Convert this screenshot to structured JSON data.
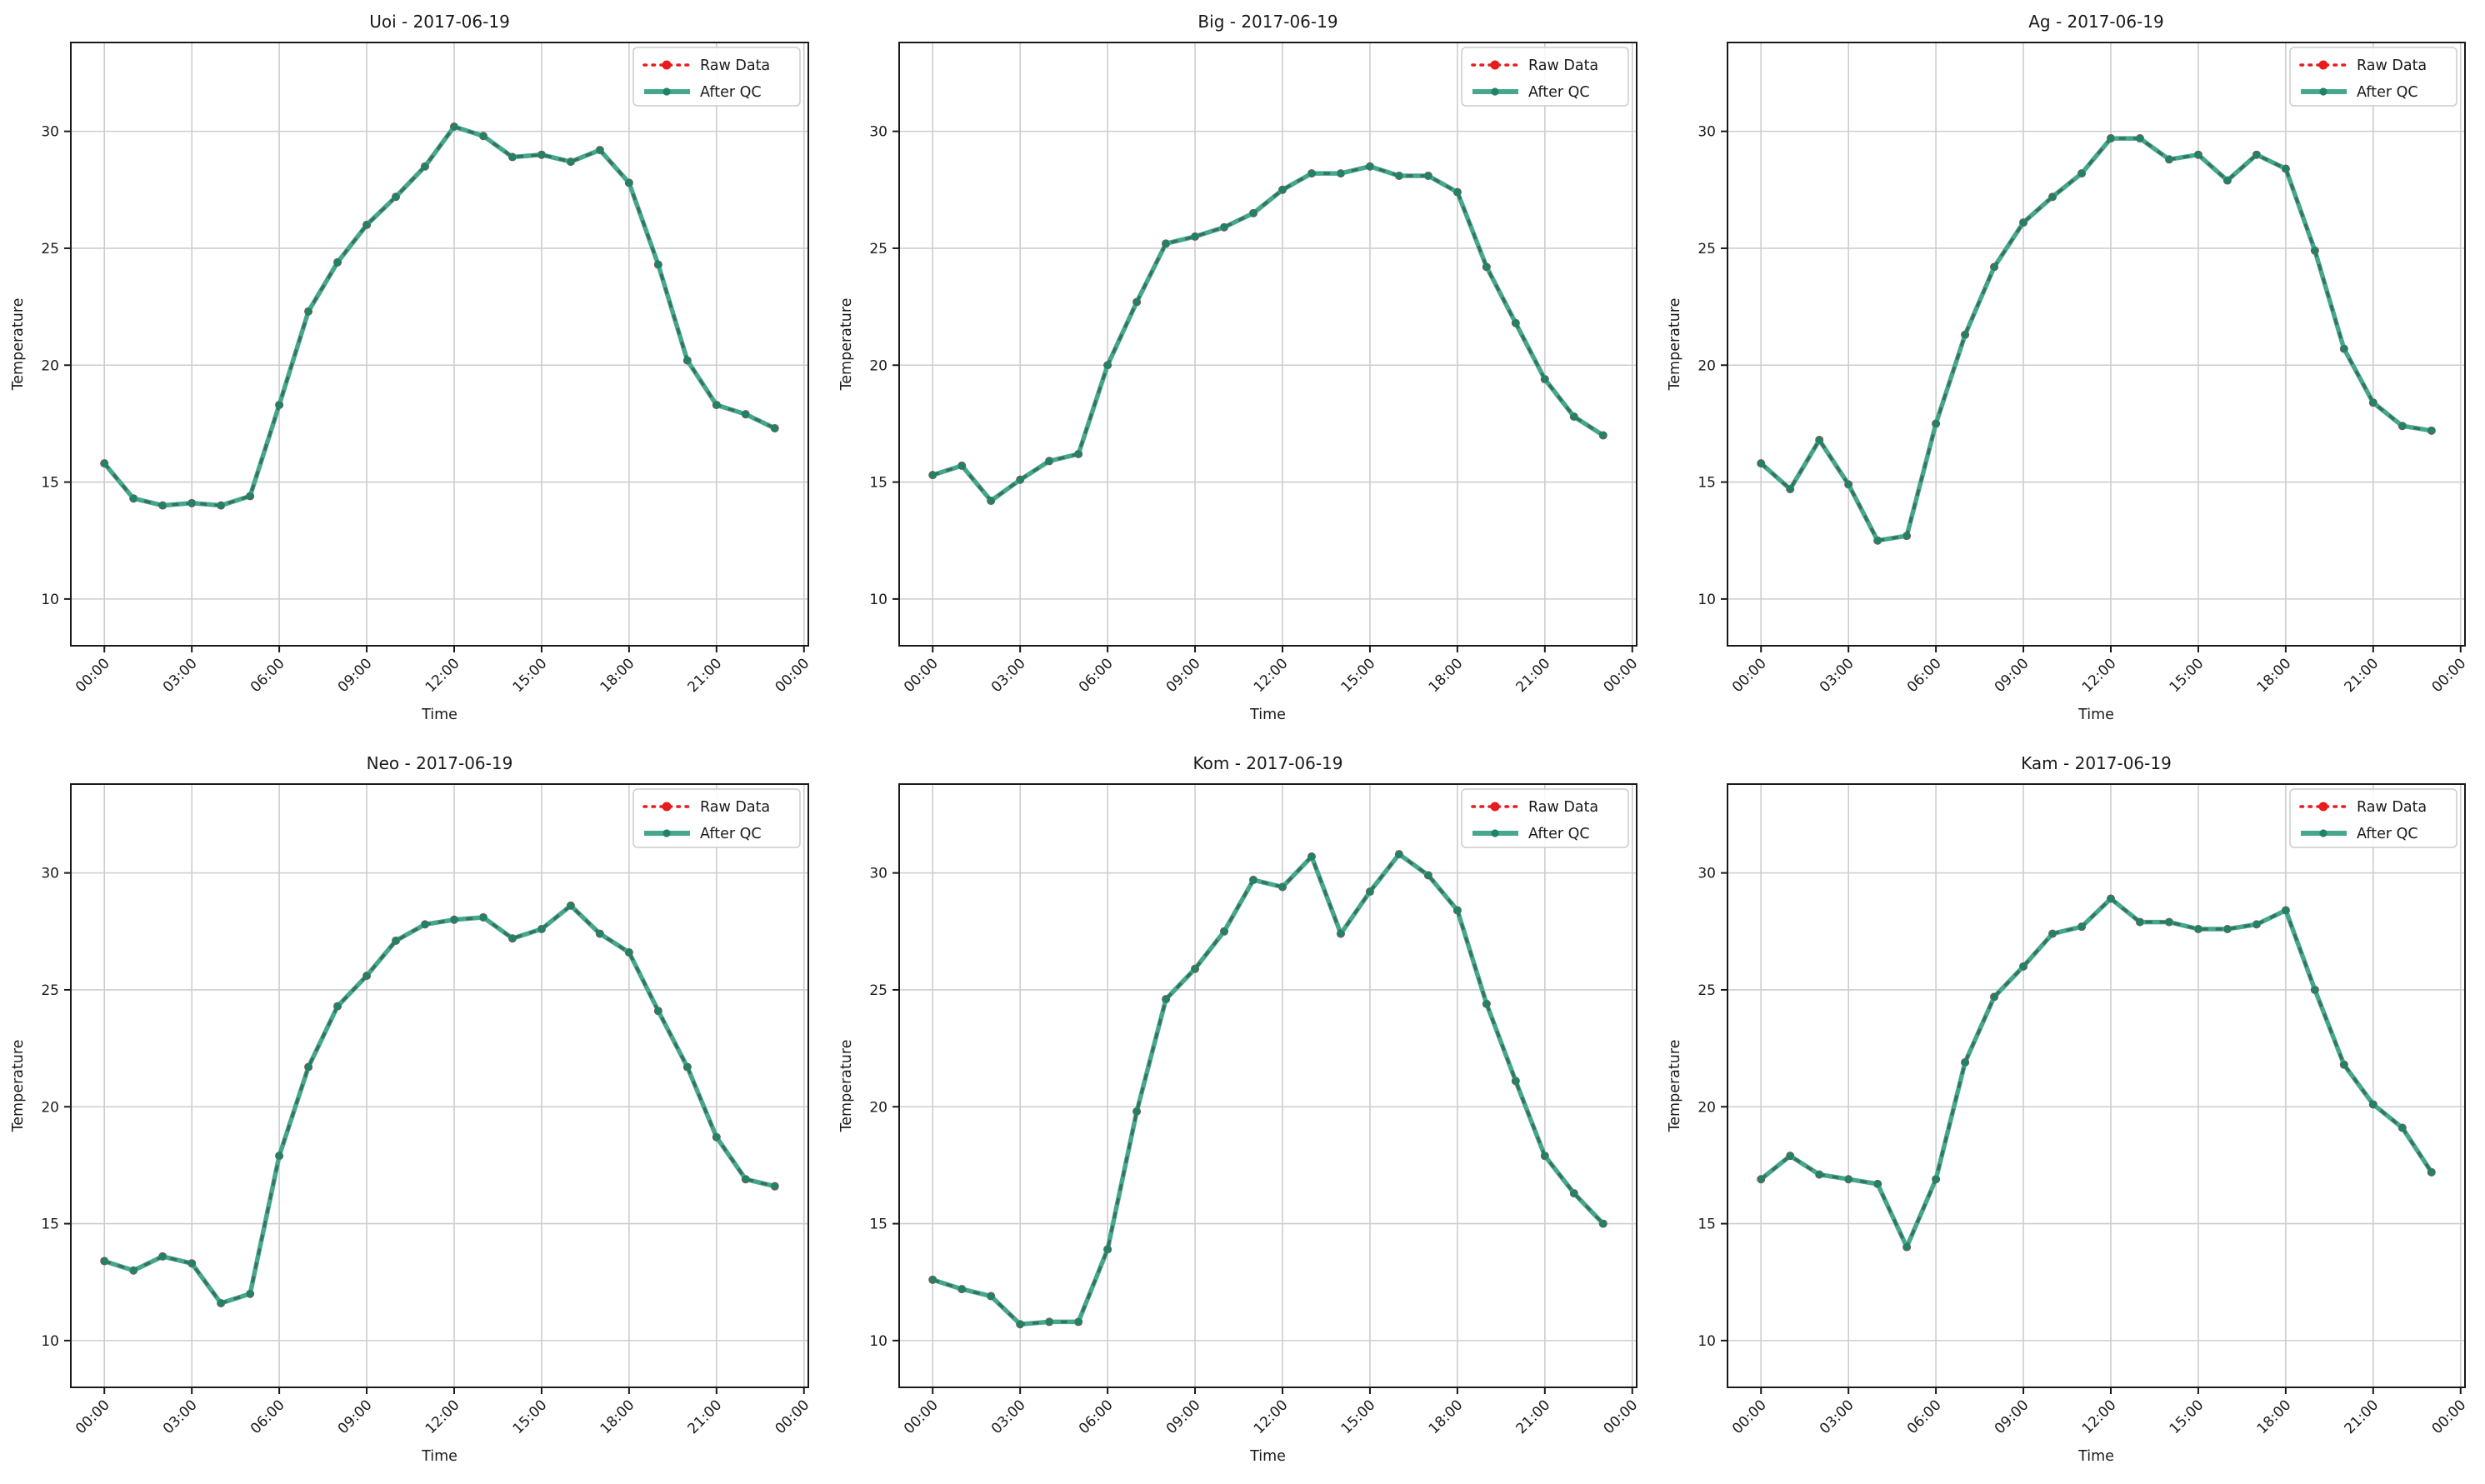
{
  "figure": {
    "date": "2017-06-19",
    "xlabel": "Time",
    "ylabel": "Temperature",
    "colors": {
      "raw_red": "#e81c1c",
      "qc_line_teal": "#45a78c",
      "qc_dash_overlay": "#38705f",
      "qc_marker": "#218268",
      "grid": "#cdcdcd",
      "spine": "#1a1a1a",
      "text": "#1a1a1a",
      "legend_border": "#cccccc",
      "legend_bg": "#ffffff"
    },
    "axes": {
      "xlim_hours": [
        -1.15,
        24.15
      ],
      "ylim": [
        8.0,
        33.8
      ],
      "xtick_hours": [
        0,
        3,
        6,
        9,
        12,
        15,
        18,
        21,
        24
      ],
      "xtick_labels": [
        "00:00",
        "03:00",
        "06:00",
        "09:00",
        "12:00",
        "15:00",
        "18:00",
        "21:00",
        "00:00"
      ],
      "ytick_values": [
        10,
        15,
        20,
        25,
        30
      ],
      "ytick_labels": [
        "10",
        "15",
        "20",
        "25",
        "30"
      ],
      "grid": true,
      "legend_position": "upper right"
    }
  },
  "chart_data": [
    {
      "type": "line",
      "station": "Uoi",
      "title": "Uoi - 2017-06-19",
      "xlabel": "Time",
      "ylabel": "Temperature",
      "x_hours": [
        0,
        1,
        2,
        3,
        4,
        5,
        6,
        7,
        8,
        9,
        10,
        11,
        12,
        13,
        14,
        15,
        16,
        17,
        18,
        19,
        20,
        21,
        22,
        23
      ],
      "series": [
        {
          "name": "Raw Data",
          "style": "dotted",
          "color_key": "raw_red",
          "values": [
            15.8,
            14.3,
            14.0,
            14.1,
            14.0,
            14.4,
            18.3,
            22.3,
            24.4,
            26.0,
            27.2,
            28.5,
            30.2,
            29.8,
            28.9,
            29.0,
            28.7,
            29.2,
            27.8,
            24.3,
            20.2,
            18.3,
            17.9,
            17.3
          ]
        },
        {
          "name": "After QC",
          "style": "solid",
          "color_key": "qc_line_teal",
          "values": [
            15.8,
            14.3,
            14.0,
            14.1,
            14.0,
            14.4,
            18.3,
            22.3,
            24.4,
            26.0,
            27.2,
            28.5,
            30.2,
            29.8,
            28.9,
            29.0,
            28.7,
            29.2,
            27.8,
            24.3,
            20.2,
            18.3,
            17.9,
            17.3
          ]
        }
      ]
    },
    {
      "type": "line",
      "station": "Big",
      "title": "Big - 2017-06-19",
      "xlabel": "Time",
      "ylabel": "Temperature",
      "x_hours": [
        0,
        1,
        2,
        3,
        4,
        5,
        6,
        7,
        8,
        9,
        10,
        11,
        12,
        13,
        14,
        15,
        16,
        17,
        18,
        19,
        20,
        21,
        22,
        23
      ],
      "series": [
        {
          "name": "Raw Data",
          "style": "dotted",
          "color_key": "raw_red",
          "values": [
            15.3,
            15.7,
            14.2,
            15.1,
            15.9,
            16.2,
            20.0,
            22.7,
            25.2,
            25.5,
            25.9,
            26.5,
            27.5,
            28.2,
            28.2,
            28.5,
            28.1,
            28.1,
            27.4,
            24.2,
            21.8,
            19.4,
            17.8,
            17.0
          ]
        },
        {
          "name": "After QC",
          "style": "solid",
          "color_key": "qc_line_teal",
          "values": [
            15.3,
            15.7,
            14.2,
            15.1,
            15.9,
            16.2,
            20.0,
            22.7,
            25.2,
            25.5,
            25.9,
            26.5,
            27.5,
            28.2,
            28.2,
            28.5,
            28.1,
            28.1,
            27.4,
            24.2,
            21.8,
            19.4,
            17.8,
            17.0
          ]
        }
      ]
    },
    {
      "type": "line",
      "station": "Ag",
      "title": "Ag - 2017-06-19",
      "xlabel": "Time",
      "ylabel": "Temperature",
      "x_hours": [
        0,
        1,
        2,
        3,
        4,
        5,
        6,
        7,
        8,
        9,
        10,
        11,
        12,
        13,
        14,
        15,
        16,
        17,
        18,
        19,
        20,
        21,
        22,
        23
      ],
      "series": [
        {
          "name": "Raw Data",
          "style": "dotted",
          "color_key": "raw_red",
          "values": [
            15.8,
            14.7,
            16.8,
            14.9,
            12.5,
            12.7,
            17.5,
            21.3,
            24.2,
            26.1,
            27.2,
            28.2,
            29.7,
            29.7,
            28.8,
            29.0,
            27.9,
            29.0,
            28.4,
            24.9,
            20.7,
            18.4,
            17.4,
            17.2
          ]
        },
        {
          "name": "After QC",
          "style": "solid",
          "color_key": "qc_line_teal",
          "values": [
            15.8,
            14.7,
            16.8,
            14.9,
            12.5,
            12.7,
            17.5,
            21.3,
            24.2,
            26.1,
            27.2,
            28.2,
            29.7,
            29.7,
            28.8,
            29.0,
            27.9,
            29.0,
            28.4,
            24.9,
            20.7,
            18.4,
            17.4,
            17.2
          ]
        }
      ]
    },
    {
      "type": "line",
      "station": "Neo",
      "title": "Neo - 2017-06-19",
      "xlabel": "Time",
      "ylabel": "Temperature",
      "x_hours": [
        0,
        1,
        2,
        3,
        4,
        5,
        6,
        7,
        8,
        9,
        10,
        11,
        12,
        13,
        14,
        15,
        16,
        17,
        18,
        19,
        20,
        21,
        22,
        23
      ],
      "series": [
        {
          "name": "Raw Data",
          "style": "dotted",
          "color_key": "raw_red",
          "values": [
            13.4,
            13.0,
            13.6,
            13.3,
            11.6,
            12.0,
            17.9,
            21.7,
            24.3,
            25.6,
            27.1,
            27.8,
            28.0,
            28.1,
            27.2,
            27.6,
            28.6,
            27.4,
            26.6,
            24.1,
            21.7,
            18.7,
            16.9,
            16.6
          ]
        },
        {
          "name": "After QC",
          "style": "solid",
          "color_key": "qc_line_teal",
          "values": [
            13.4,
            13.0,
            13.6,
            13.3,
            11.6,
            12.0,
            17.9,
            21.7,
            24.3,
            25.6,
            27.1,
            27.8,
            28.0,
            28.1,
            27.2,
            27.6,
            28.6,
            27.4,
            26.6,
            24.1,
            21.7,
            18.7,
            16.9,
            16.6
          ]
        }
      ]
    },
    {
      "type": "line",
      "station": "Kom",
      "title": "Kom - 2017-06-19",
      "xlabel": "Time",
      "ylabel": "Temperature",
      "x_hours": [
        0,
        1,
        2,
        3,
        4,
        5,
        6,
        7,
        8,
        9,
        10,
        11,
        12,
        13,
        14,
        15,
        16,
        17,
        18,
        19,
        20,
        21,
        22,
        23
      ],
      "series": [
        {
          "name": "Raw Data",
          "style": "dotted",
          "color_key": "raw_red",
          "values": [
            12.6,
            12.2,
            11.9,
            10.7,
            10.8,
            10.8,
            13.9,
            19.8,
            24.6,
            25.9,
            27.5,
            29.7,
            29.4,
            30.7,
            27.4,
            29.2,
            30.8,
            29.9,
            28.4,
            24.4,
            21.1,
            17.9,
            16.3,
            15.0
          ]
        },
        {
          "name": "After QC",
          "style": "solid",
          "color_key": "qc_line_teal",
          "values": [
            12.6,
            12.2,
            11.9,
            10.7,
            10.8,
            10.8,
            13.9,
            19.8,
            24.6,
            25.9,
            27.5,
            29.7,
            29.4,
            30.7,
            27.4,
            29.2,
            30.8,
            29.9,
            28.4,
            24.4,
            21.1,
            17.9,
            16.3,
            15.0
          ]
        }
      ]
    },
    {
      "type": "line",
      "station": "Kam",
      "title": "Kam - 2017-06-19",
      "xlabel": "Time",
      "ylabel": "Temperature",
      "x_hours": [
        0,
        1,
        2,
        3,
        4,
        5,
        6,
        7,
        8,
        9,
        10,
        11,
        12,
        13,
        14,
        15,
        16,
        17,
        18,
        19,
        20,
        21,
        22,
        23
      ],
      "series": [
        {
          "name": "Raw Data",
          "style": "dotted",
          "color_key": "raw_red",
          "values": [
            16.9,
            17.9,
            17.1,
            16.9,
            16.7,
            14.0,
            16.9,
            21.9,
            24.7,
            26.0,
            27.4,
            27.7,
            28.9,
            27.9,
            27.9,
            27.6,
            27.6,
            27.8,
            28.4,
            25.0,
            21.8,
            20.1,
            19.1,
            17.2
          ]
        },
        {
          "name": "After QC",
          "style": "solid",
          "color_key": "qc_line_teal",
          "values": [
            16.9,
            17.9,
            17.1,
            16.9,
            16.7,
            14.0,
            16.9,
            21.9,
            24.7,
            26.0,
            27.4,
            27.7,
            28.9,
            27.9,
            27.9,
            27.6,
            27.6,
            27.8,
            28.4,
            25.0,
            21.8,
            20.1,
            19.1,
            17.2
          ]
        }
      ]
    }
  ]
}
